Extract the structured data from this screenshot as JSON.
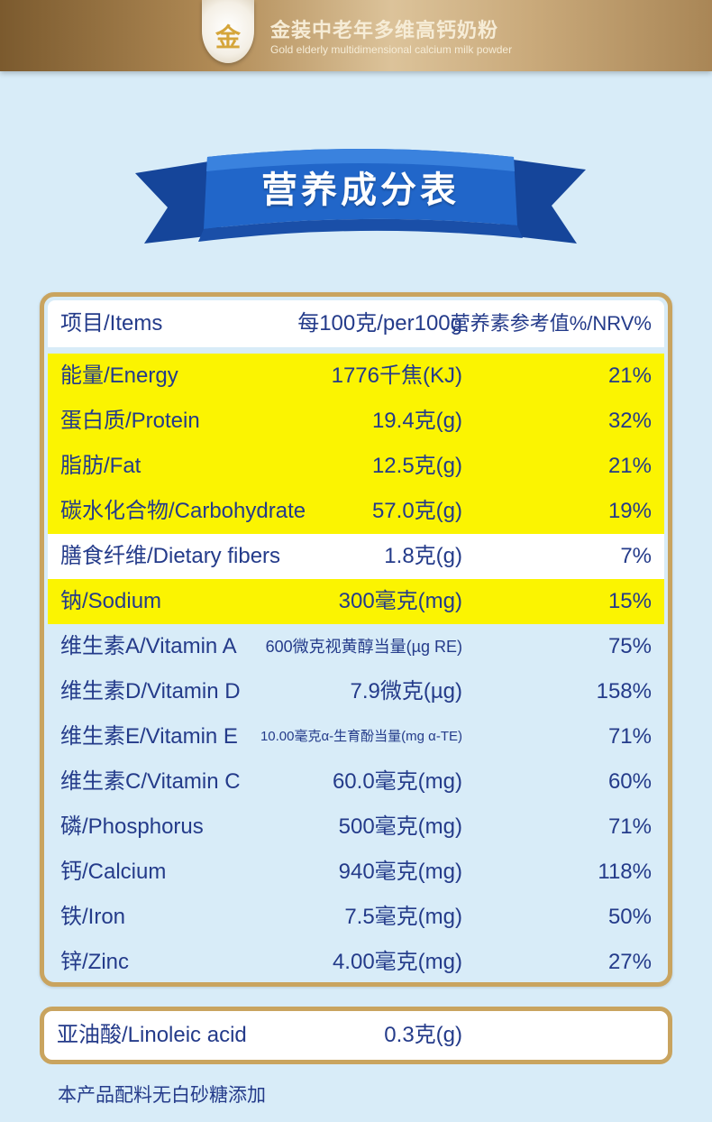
{
  "header": {
    "badge_char": "金",
    "title_cn": "金装中老年多维高钙奶粉",
    "title_en": "Gold elderly multidimensional calcium milk powder"
  },
  "ribbon": {
    "title": "营养成分表"
  },
  "table": {
    "headers": {
      "item": "项目/Items",
      "per100": "每100克/per100g",
      "nrv": "营养素参考值%/NRV%"
    },
    "rows": [
      {
        "name": "能量/Energy",
        "value": "1776千焦(KJ)",
        "nrv": "21%",
        "highlight": "yellow"
      },
      {
        "name": "蛋白质/Protein",
        "value": "19.4克(g)",
        "nrv": "32%",
        "highlight": "yellow"
      },
      {
        "name": "脂肪/Fat",
        "value": "12.5克(g)",
        "nrv": "21%",
        "highlight": "yellow"
      },
      {
        "name": "碳水化合物/Carbohydrate",
        "value": "57.0克(g)",
        "nrv": "19%",
        "highlight": "yellow"
      },
      {
        "name": "膳食纤维/Dietary fibers",
        "value": "1.8克(g)",
        "nrv": "7%",
        "highlight": "white"
      },
      {
        "name": "钠/Sodium",
        "value": "300毫克(mg)",
        "nrv": "15%",
        "highlight": "yellow"
      },
      {
        "name": "维生素A/Vitamin A",
        "value": "600微克视黄醇当量(µg RE)",
        "nrv": "75%",
        "highlight": "none"
      },
      {
        "name": "维生素D/Vitamin D",
        "value": "7.9微克(µg)",
        "nrv": "158%",
        "highlight": "none"
      },
      {
        "name": "维生素E/Vitamin E",
        "value": "10.00毫克α-生育酚当量(mg α-TE)",
        "nrv": "71%",
        "highlight": "none"
      },
      {
        "name": "维生素C/Vitamin C",
        "value": "60.0毫克(mg)",
        "nrv": "60%",
        "highlight": "none"
      },
      {
        "name": "磷/Phosphorus",
        "value": "500毫克(mg)",
        "nrv": "71%",
        "highlight": "none"
      },
      {
        "name": "钙/Calcium",
        "value": "940毫克(mg)",
        "nrv": "118%",
        "highlight": "none"
      },
      {
        "name": "铁/Iron",
        "value": "7.5毫克(mg)",
        "nrv": "50%",
        "highlight": "none"
      },
      {
        "name": "锌/Zinc",
        "value": "4.00毫克(mg)",
        "nrv": "27%",
        "highlight": "none"
      }
    ]
  },
  "extra": {
    "name": "亚油酸/Linoleic acid",
    "value": "0.3克(g)"
  },
  "footnote": "本产品配料无白砂糖添加",
  "colors": {
    "text": "#243b8a",
    "gold": "#c9a45f",
    "yellow": "#fbf401",
    "background": "#d8ecf8",
    "ribbon": "#1f5fc4"
  }
}
